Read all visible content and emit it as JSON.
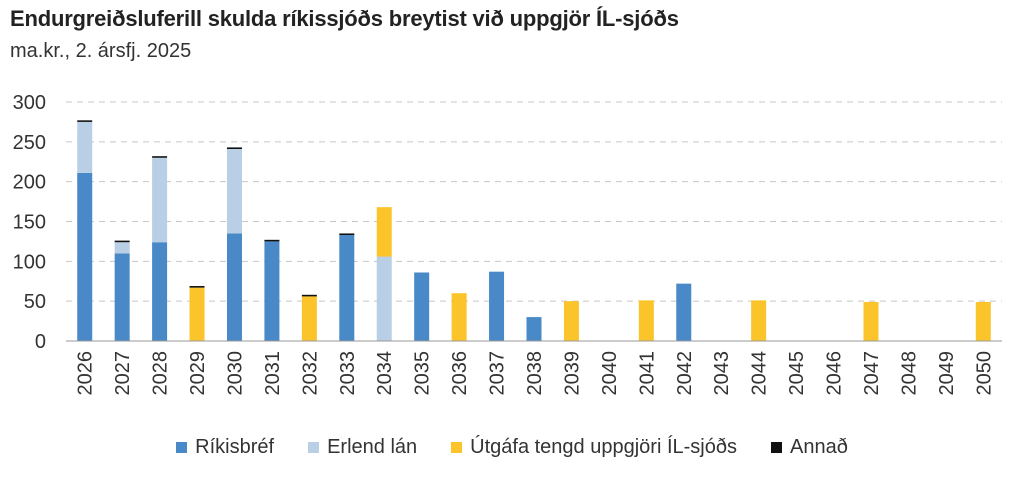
{
  "chart_data": {
    "type": "bar",
    "stacked": true,
    "title": "Endurgreiðsluferill skulda ríkissjóðs breytist við uppgjör ÍL-sjóðs",
    "subtitle": "ma.kr., 2. ársfj. 2025",
    "xlabel": "",
    "ylabel": "",
    "ylim": [
      0,
      300
    ],
    "yticks": [
      0,
      50,
      100,
      150,
      200,
      250,
      300
    ],
    "grid": true,
    "legend_position": "bottom",
    "categories": [
      "2026",
      "2027",
      "2028",
      "2029",
      "2030",
      "2031",
      "2032",
      "2033",
      "2034",
      "2035",
      "2036",
      "2037",
      "2038",
      "2039",
      "2040",
      "2041",
      "2042",
      "2043",
      "2044",
      "2045",
      "2046",
      "2047",
      "2048",
      "2049",
      "2050"
    ],
    "series": [
      {
        "name": "Ríkisbréf",
        "color": "#4a89c8",
        "values": [
          211,
          110,
          124,
          0,
          135,
          125,
          0,
          133,
          0,
          86,
          0,
          87,
          30,
          0,
          0,
          0,
          72,
          0,
          0,
          0,
          0,
          0,
          0,
          0,
          0
        ]
      },
      {
        "name": "Erlend lán",
        "color": "#b8cfe6",
        "values": [
          64,
          14,
          106,
          0,
          106,
          0,
          0,
          0,
          106,
          0,
          0,
          0,
          0,
          0,
          0,
          0,
          0,
          0,
          0,
          0,
          0,
          0,
          0,
          0,
          0
        ]
      },
      {
        "name": "Útgáfa tengd uppgjöri ÍL-sjóðs",
        "color": "#fbc42a",
        "values": [
          0,
          0,
          0,
          67,
          0,
          0,
          56,
          0,
          62,
          0,
          60,
          0,
          0,
          50,
          0,
          51,
          0,
          0,
          51,
          0,
          0,
          49,
          0,
          0,
          49
        ]
      },
      {
        "name": "Annað",
        "color": "#111111",
        "values": [
          2,
          2,
          2,
          2,
          2,
          2,
          2,
          2,
          0,
          0,
          0,
          0,
          0,
          0,
          0,
          0,
          0,
          0,
          0,
          0,
          0,
          0,
          0,
          0,
          0
        ]
      }
    ]
  }
}
